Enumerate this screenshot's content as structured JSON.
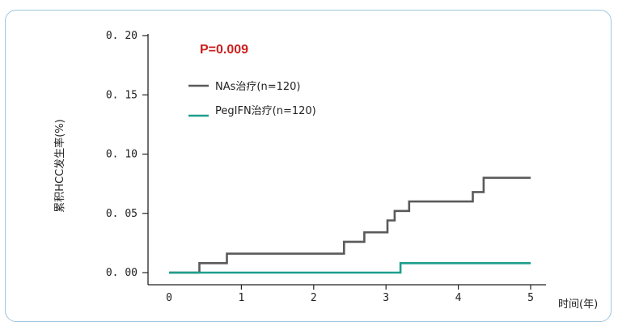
{
  "chart_data": {
    "type": "line",
    "title": "",
    "xlabel": "时间(年)",
    "ylabel": "累积HCC发生率(%)",
    "annotation": "P=0.009",
    "annotation_color": "#cc1f1f",
    "xlim": [
      0,
      5
    ],
    "ylim": [
      0,
      0.2
    ],
    "x_ticks": [
      "0",
      "1",
      "2",
      "3",
      "4",
      "5"
    ],
    "y_ticks": [
      "0. 00",
      "0. 05",
      "0. 10",
      "0. 15",
      "0. 20"
    ],
    "legend_position": "top-left",
    "series": [
      {
        "name": "NAs治疗(n=120)",
        "color": "#5a5a5a",
        "x": [
          0,
          0.42,
          0.42,
          0.8,
          0.8,
          2.42,
          2.42,
          2.7,
          2.7,
          3.02,
          3.02,
          3.12,
          3.12,
          3.32,
          3.32,
          4.2,
          4.2,
          4.35,
          4.35,
          5
        ],
        "y": [
          0,
          0,
          0.008,
          0.008,
          0.016,
          0.016,
          0.026,
          0.026,
          0.034,
          0.034,
          0.044,
          0.044,
          0.052,
          0.052,
          0.06,
          0.06,
          0.068,
          0.068,
          0.08,
          0.08
        ]
      },
      {
        "name": "PegIFN治疗(n=120)",
        "color": "#1e9e8c",
        "x": [
          0,
          3.2,
          3.2,
          5
        ],
        "y": [
          0,
          0,
          0.008,
          0.008
        ]
      }
    ]
  }
}
